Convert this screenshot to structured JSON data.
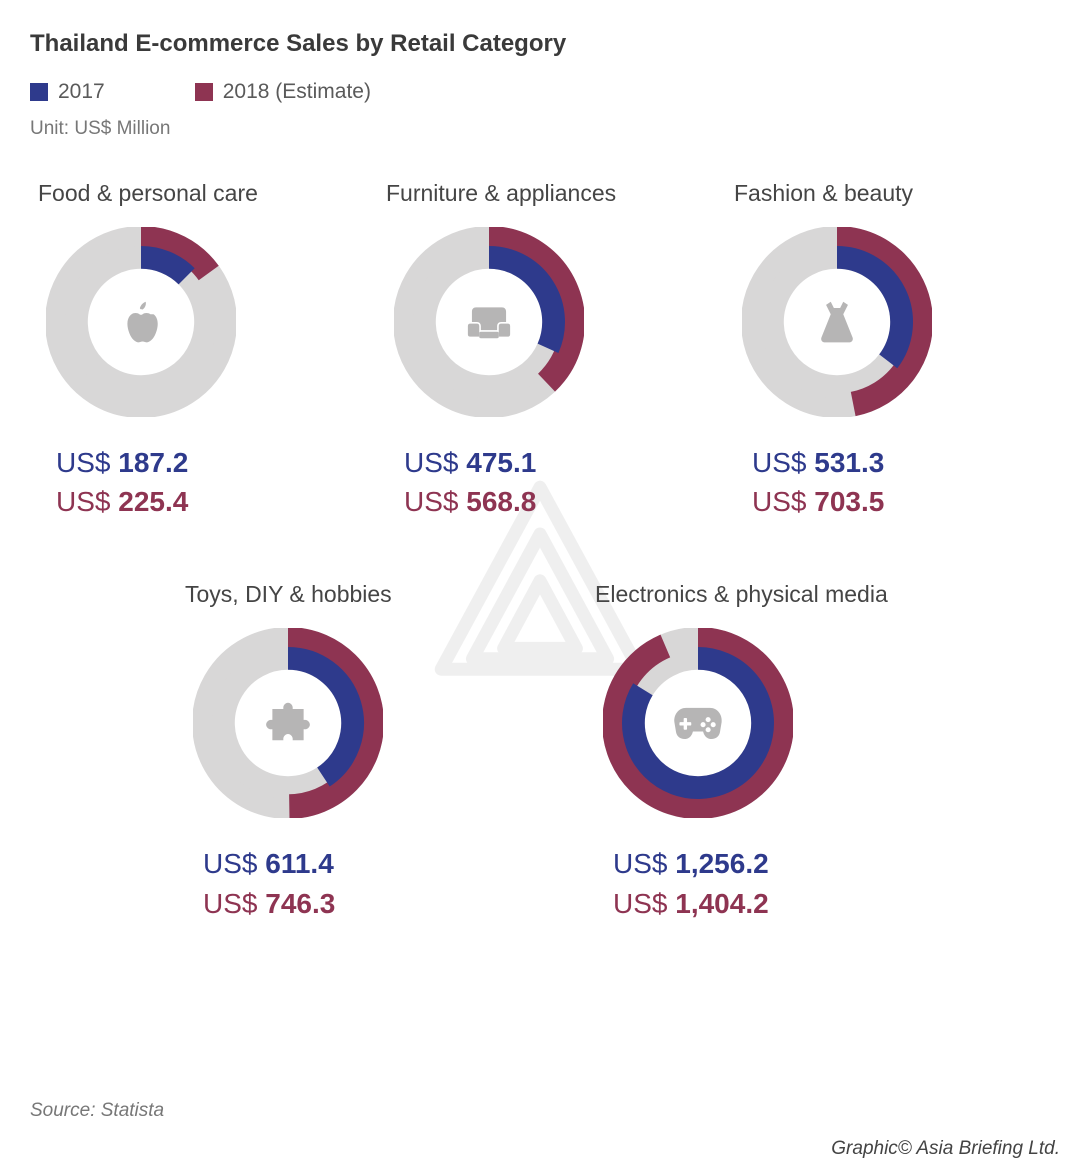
{
  "title": "Thailand E-commerce Sales by Retail Category",
  "legend": {
    "y2017": {
      "label": "2017",
      "color": "#2e3a8c"
    },
    "y2018": {
      "label": "2018 (Estimate)",
      "color": "#8e3452"
    }
  },
  "unit": "Unit: US$ Million",
  "colors": {
    "ring_bg": "#d8d7d7",
    "icon": "#b6b5b5",
    "text_muted": "#777777",
    "val_2017": "#2e3a8c",
    "val_2018": "#8e3452",
    "background": "#ffffff"
  },
  "donut": {
    "outer_r": 48,
    "ring1_r": 44,
    "ring2_r": 34,
    "stroke_w": 13,
    "inner_stroke_w": 12,
    "max_value": 1500
  },
  "categories": [
    {
      "id": "food",
      "title": "Food & personal care",
      "icon": "apple",
      "v2017": 187.2,
      "v2018": 225.4,
      "v2017_str": "187.2",
      "v2018_str": "225.4"
    },
    {
      "id": "furniture",
      "title": "Furniture & appliances",
      "icon": "armchair",
      "v2017": 475.1,
      "v2018": 568.8,
      "v2017_str": "475.1",
      "v2018_str": "568.8"
    },
    {
      "id": "fashion",
      "title": "Fashion & beauty",
      "icon": "dress",
      "v2017": 531.3,
      "v2018": 703.5,
      "v2017_str": "531.3",
      "v2018_str": "703.5"
    },
    {
      "id": "toys",
      "title": "Toys, DIY & hobbies",
      "icon": "puzzle",
      "v2017": 611.4,
      "v2018": 746.3,
      "v2017_str": "611.4",
      "v2018_str": "746.3"
    },
    {
      "id": "electronics",
      "title": "Electronics & physical media",
      "icon": "gamepad",
      "v2017": 1256.2,
      "v2018": 1404.2,
      "v2017_str": "1,256.2",
      "v2018_str": "1,404.2"
    }
  ],
  "currency_prefix": "US$ ",
  "source": "Source: Statista",
  "credit": "Graphic© Asia Briefing Ltd."
}
